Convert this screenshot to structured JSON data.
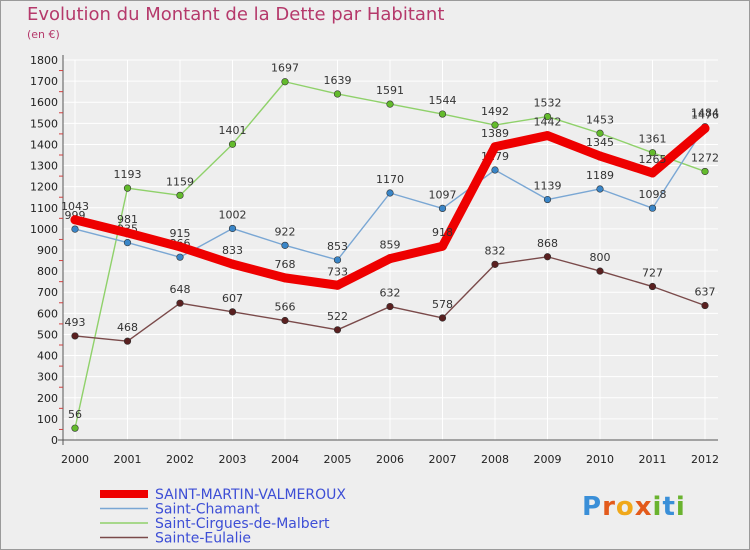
{
  "header": {
    "title": "Evolution du Montant de la Dette par Habitant",
    "unit": "(en €)"
  },
  "logo": {
    "text": "Proxiti"
  },
  "chart_data": {
    "type": "line",
    "title": "Evolution du Montant de la Dette par Habitant",
    "ylabel": "(en €)",
    "xlabel": "",
    "x": [
      "2000",
      "2001",
      "2002",
      "2003",
      "2004",
      "2005",
      "2006",
      "2007",
      "2008",
      "2009",
      "2010",
      "2011",
      "2012"
    ],
    "ylim": [
      0,
      1800
    ],
    "yticks": [
      0,
      100,
      200,
      300,
      400,
      500,
      600,
      700,
      800,
      900,
      1000,
      1100,
      1200,
      1300,
      1400,
      1500,
      1600,
      1700,
      1800
    ],
    "grid": true,
    "legend_position": "bottom-left",
    "series": [
      {
        "name": "Saint-Cirgues-de-Malbert",
        "color": "#8fd16a",
        "marker": "#63bb2c",
        "values": [
          56,
          1193,
          1159,
          1401,
          1697,
          1639,
          1591,
          1544,
          1492,
          1532,
          1453,
          1361,
          1272
        ],
        "labels": [
          "56",
          "1193",
          "1159",
          "1401",
          "1697",
          "1639",
          "1591",
          "1544",
          "1492",
          "1532",
          "1453",
          "1361",
          "1272"
        ]
      },
      {
        "name": "Saint-Chamant",
        "color": "#7aa7d4",
        "marker": "#3a86c8",
        "values": [
          999,
          935,
          866,
          1002,
          922,
          853,
          1170,
          1097,
          1279,
          1139,
          1189,
          1098,
          1484
        ],
        "labels": [
          "999",
          "935",
          "866",
          "1002",
          "922",
          "853",
          "1170",
          "1097",
          "1279",
          "1139",
          "1189",
          "1098",
          "1484"
        ]
      },
      {
        "name": "Sainte-Eulalie",
        "color": "#7a4a4a",
        "marker": "#5a2020",
        "values": [
          493,
          468,
          648,
          607,
          566,
          522,
          632,
          578,
          832,
          868,
          800,
          727,
          637
        ],
        "labels": [
          "493",
          "468",
          "648",
          "607",
          "566",
          "522",
          "632",
          "578",
          "832",
          "868",
          "800",
          "727",
          "637"
        ]
      },
      {
        "name": "SAINT-MARTIN-VALMEROUX",
        "color": "#ee0000",
        "marker": "#ee0000",
        "values": [
          1043,
          981,
          915,
          833,
          768,
          733,
          859,
          918,
          1389,
          1442,
          1345,
          1265,
          1476
        ],
        "labels": [
          "1043",
          "981",
          "915",
          "833",
          "768",
          "733",
          "859",
          "918",
          "1389",
          "1442",
          "1345",
          "1265",
          "1476"
        ]
      }
    ],
    "legend": [
      {
        "name": "SAINT-MARTIN-VALMEROUX",
        "color": "#ee0000"
      },
      {
        "name": "Saint-Chamant",
        "color": "#7aa7d4"
      },
      {
        "name": "Saint-Cirgues-de-Malbert",
        "color": "#8fd16a"
      },
      {
        "name": "Sainte-Eulalie",
        "color": "#7a4a4a"
      }
    ]
  }
}
